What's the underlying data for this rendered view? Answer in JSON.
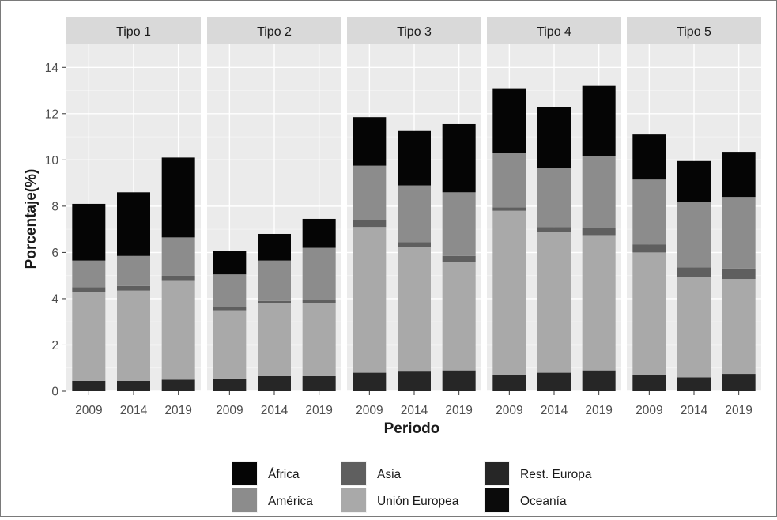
{
  "chart_data": {
    "type": "bar",
    "stacked": true,
    "faceted": true,
    "xlabel": "Periodo",
    "ylabel": "Porcentaje(%)",
    "ylim": [
      0,
      15
    ],
    "yticks": [
      0,
      2,
      4,
      6,
      8,
      10,
      12,
      14
    ],
    "grid": true,
    "legend_position": "bottom",
    "categories": [
      "2009",
      "2014",
      "2019"
    ],
    "stack_order": [
      "Oceanía",
      "Rest. Europa",
      "Unión Europea",
      "Asia",
      "América",
      "África"
    ],
    "legend": [
      {
        "name": "África",
        "color": "#050505"
      },
      {
        "name": "América",
        "color": "#8c8c8c"
      },
      {
        "name": "Asia",
        "color": "#5f5f5f"
      },
      {
        "name": "Unión Europea",
        "color": "#a9a9a9"
      },
      {
        "name": "Rest. Europa",
        "color": "#262626"
      },
      {
        "name": "Oceanía",
        "color": "#0b0b0b"
      }
    ],
    "facets": [
      {
        "title": "Tipo 1",
        "series": [
          {
            "name": "Oceanía",
            "values": [
              0.0,
              0.0,
              0.0
            ]
          },
          {
            "name": "Rest. Europa",
            "values": [
              0.45,
              0.45,
              0.5
            ]
          },
          {
            "name": "Unión Europea",
            "values": [
              3.85,
              3.9,
              4.3
            ]
          },
          {
            "name": "Asia",
            "values": [
              0.2,
              0.2,
              0.2
            ]
          },
          {
            "name": "América",
            "values": [
              1.15,
              1.3,
              1.65
            ]
          },
          {
            "name": "África",
            "values": [
              2.45,
              2.75,
              3.45
            ]
          }
        ]
      },
      {
        "title": "Tipo 2",
        "series": [
          {
            "name": "Oceanía",
            "values": [
              0.0,
              0.0,
              0.0
            ]
          },
          {
            "name": "Rest. Europa",
            "values": [
              0.55,
              0.65,
              0.65
            ]
          },
          {
            "name": "Unión Europea",
            "values": [
              2.95,
              3.15,
              3.15
            ]
          },
          {
            "name": "Asia",
            "values": [
              0.15,
              0.1,
              0.15
            ]
          },
          {
            "name": "América",
            "values": [
              1.4,
              1.75,
              2.25
            ]
          },
          {
            "name": "África",
            "values": [
              1.0,
              1.15,
              1.25
            ]
          }
        ]
      },
      {
        "title": "Tipo 3",
        "series": [
          {
            "name": "Oceanía",
            "values": [
              0.0,
              0.0,
              0.0
            ]
          },
          {
            "name": "Rest. Europa",
            "values": [
              0.8,
              0.85,
              0.9
            ]
          },
          {
            "name": "Unión Europea",
            "values": [
              6.3,
              5.4,
              4.7
            ]
          },
          {
            "name": "Asia",
            "values": [
              0.3,
              0.2,
              0.25
            ]
          },
          {
            "name": "América",
            "values": [
              2.35,
              2.45,
              2.75
            ]
          },
          {
            "name": "África",
            "values": [
              2.1,
              2.35,
              2.95
            ]
          }
        ]
      },
      {
        "title": "Tipo 4",
        "series": [
          {
            "name": "Oceanía",
            "values": [
              0.0,
              0.0,
              0.0
            ]
          },
          {
            "name": "Rest. Europa",
            "values": [
              0.7,
              0.8,
              0.9
            ]
          },
          {
            "name": "Unión Europea",
            "values": [
              7.1,
              6.1,
              5.85
            ]
          },
          {
            "name": "Asia",
            "values": [
              0.15,
              0.2,
              0.3
            ]
          },
          {
            "name": "América",
            "values": [
              2.35,
              2.55,
              3.1
            ]
          },
          {
            "name": "África",
            "values": [
              2.8,
              2.65,
              3.05
            ]
          }
        ]
      },
      {
        "title": "Tipo 5",
        "series": [
          {
            "name": "Oceanía",
            "values": [
              0.0,
              0.0,
              0.0
            ]
          },
          {
            "name": "Rest. Europa",
            "values": [
              0.7,
              0.6,
              0.75
            ]
          },
          {
            "name": "Unión Europea",
            "values": [
              5.3,
              4.35,
              4.1
            ]
          },
          {
            "name": "Asia",
            "values": [
              0.35,
              0.4,
              0.45
            ]
          },
          {
            "name": "América",
            "values": [
              2.8,
              2.85,
              3.1
            ]
          },
          {
            "name": "África",
            "values": [
              1.95,
              1.75,
              1.95
            ]
          }
        ]
      }
    ]
  }
}
